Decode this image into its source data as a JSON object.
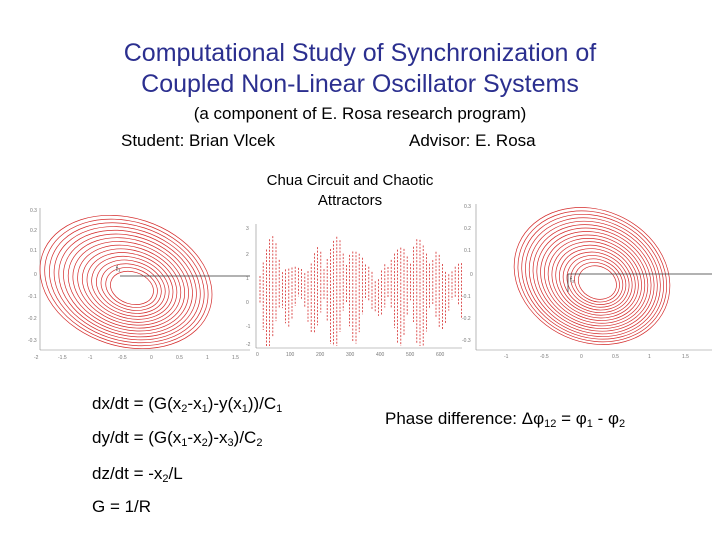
{
  "title": {
    "line1": "Computational Study of Synchronization of",
    "line2": "Coupled Non-Linear Oscillator Systems"
  },
  "subtitle": "(a component of E. Rosa research program)",
  "student": "Student: Brian Vlcek",
  "advisor": "Advisor: E. Rosa",
  "figure_caption": {
    "line1": "Chua Circuit and Chaotic",
    "line2": "Attractors"
  },
  "equations": {
    "dx": {
      "a": "dx/dt = (G(x",
      "s1": "2",
      "b": "-x",
      "s2": "1",
      "c": ")-y(x",
      "s3": "1",
      "d": "))/C",
      "s4": "1"
    },
    "dy": {
      "a": "dy/dt = (G(x",
      "s1": "1",
      "b": "-x",
      "s2": "2",
      "c": ")-x",
      "s3": "3",
      "d": ")/C",
      "s4": "2"
    },
    "dz": {
      "a": "dz/dt = -x",
      "s1": "2",
      "b": "/L"
    },
    "g": "G = 1/R"
  },
  "phase": {
    "prefix": "Phase difference:  Δφ",
    "s1": "12",
    "mid1": " = φ",
    "s2": "1",
    "mid2": " - φ",
    "s3": "2"
  },
  "colors": {
    "title": "#2b2f8f",
    "trace": "#d42a2a",
    "axis": "#666666"
  }
}
